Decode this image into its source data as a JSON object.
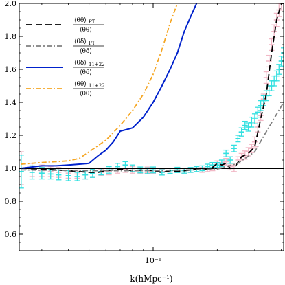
{
  "chart_data": {
    "type": "line",
    "xlabel": "k(hMpc⁻¹)",
    "ylabel": "",
    "xscale": "log",
    "xlim": [
      0.0235,
      0.41
    ],
    "ylim": [
      0.5,
      2.0
    ],
    "x_ticks": [
      {
        "value": 0.1,
        "label": "10⁻¹"
      }
    ],
    "y_ticks": [
      "0.6",
      "0.8",
      "1.0",
      "1.2",
      "1.4",
      "1.6",
      "1.8",
      "2.0"
    ],
    "reference_line": 1.0,
    "grid": false,
    "legend_position": "top-left",
    "series": [
      {
        "name": "⟨θθ⟩PT / ⟨θθ⟩",
        "legend": {
          "numerator": "⟨θθ⟩",
          "numerator_sub": "PT",
          "denominator": "⟨θθ⟩"
        },
        "color": "#000000",
        "dash": "dashed",
        "x": [
          0.024,
          0.03,
          0.035,
          0.04,
          0.045,
          0.05,
          0.055,
          0.06,
          0.065,
          0.07,
          0.075,
          0.08,
          0.09,
          0.1,
          0.11,
          0.12,
          0.13,
          0.14,
          0.15,
          0.16,
          0.17,
          0.18,
          0.19,
          0.2,
          0.21,
          0.22,
          0.23,
          0.24,
          0.26,
          0.28,
          0.3,
          0.32,
          0.34,
          0.36,
          0.38,
          0.4,
          0.41
        ],
        "y": [
          1.0,
          0.995,
          0.99,
          0.985,
          0.98,
          0.975,
          0.975,
          0.985,
          0.99,
          0.995,
          0.99,
          0.985,
          0.99,
          0.985,
          0.975,
          0.985,
          0.98,
          0.985,
          0.99,
          0.995,
          0.99,
          0.995,
          1.005,
          1.03,
          1.02,
          1.03,
          1.0,
          1.0,
          1.07,
          1.09,
          1.13,
          1.3,
          1.45,
          1.7,
          1.9,
          2.0,
          2.0
        ]
      },
      {
        "name": "⟨θδ⟩PT / ⟨θδ⟩",
        "legend": {
          "numerator": "⟨θδ⟩",
          "numerator_sub": "PT",
          "denominator": "⟨θδ⟩"
        },
        "color": "#808080",
        "dash": "dashdot",
        "x": [
          0.024,
          0.05,
          0.1,
          0.15,
          0.2,
          0.25,
          0.3,
          0.35,
          0.41
        ],
        "y": [
          0.99,
          0.985,
          0.985,
          0.99,
          0.995,
          1.03,
          1.1,
          1.25,
          1.4
        ]
      },
      {
        "name": "⟨θδ⟩11+22 / ⟨θδ⟩",
        "legend": {
          "numerator": "⟨θδ⟩",
          "numerator_sub": "11+22",
          "denominator": "⟨θδ⟩"
        },
        "color": "#0022cc",
        "dash": "solid",
        "x": [
          0.024,
          0.03,
          0.035,
          0.04,
          0.045,
          0.05,
          0.055,
          0.06,
          0.065,
          0.07,
          0.075,
          0.08,
          0.09,
          0.1,
          0.11,
          0.12,
          0.13,
          0.14,
          0.15,
          0.16
        ],
        "y": [
          1.0,
          1.015,
          1.015,
          1.02,
          1.025,
          1.03,
          1.075,
          1.11,
          1.16,
          1.225,
          1.235,
          1.245,
          1.31,
          1.4,
          1.5,
          1.6,
          1.7,
          1.83,
          1.92,
          2.0
        ]
      },
      {
        "name": "⟨θθ⟩11+22 / ⟨θθ⟩",
        "legend": {
          "numerator": "⟨θθ⟩",
          "numerator_sub": "11+22",
          "denominator": "⟨θθ⟩"
        },
        "color": "#f5a623",
        "dash": "dashdot",
        "x": [
          0.024,
          0.03,
          0.035,
          0.04,
          0.045,
          0.05,
          0.06,
          0.07,
          0.08,
          0.09,
          0.1,
          0.11,
          0.12,
          0.13
        ],
        "y": [
          1.025,
          1.035,
          1.04,
          1.045,
          1.06,
          1.1,
          1.17,
          1.26,
          1.35,
          1.45,
          1.57,
          1.72,
          1.88,
          2.0
        ]
      }
    ],
    "error_series": [
      {
        "color": "#f2b8c6",
        "x": [
          0.024,
          0.027,
          0.03,
          0.033,
          0.036,
          0.04,
          0.044,
          0.048,
          0.052,
          0.057,
          0.062,
          0.068,
          0.074,
          0.08,
          0.087,
          0.094,
          0.1,
          0.11,
          0.12,
          0.13,
          0.14,
          0.15,
          0.16,
          0.17,
          0.18,
          0.19,
          0.2,
          0.21,
          0.22,
          0.23,
          0.24,
          0.25,
          0.26,
          0.27,
          0.28,
          0.29,
          0.3,
          0.31,
          0.32,
          0.33,
          0.34,
          0.35,
          0.36,
          0.37,
          0.38,
          0.39,
          0.4,
          0.41
        ],
        "y": [
          1.0,
          0.99,
          0.985,
          0.98,
          0.975,
          0.97,
          0.965,
          0.96,
          0.97,
          0.975,
          0.98,
          0.99,
          0.995,
          0.99,
          0.985,
          0.99,
          0.985,
          0.98,
          0.985,
          0.99,
          0.985,
          0.99,
          0.995,
          0.99,
          0.995,
          1.0,
          1.03,
          1.02,
          1.04,
          1.01,
          1.0,
          1.05,
          1.07,
          1.08,
          1.1,
          1.12,
          1.16,
          1.25,
          1.32,
          1.42,
          1.55,
          1.65,
          1.75,
          1.83,
          1.9,
          1.96,
          2.0,
          2.0
        ],
        "err": [
          0.1,
          0.04,
          0.035,
          0.03,
          0.03,
          0.03,
          0.025,
          0.025,
          0.025,
          0.02,
          0.02,
          0.02,
          0.02,
          0.02,
          0.018,
          0.018,
          0.018,
          0.016,
          0.016,
          0.016,
          0.015,
          0.015,
          0.015,
          0.015,
          0.015,
          0.015,
          0.015,
          0.015,
          0.02,
          0.02,
          0.02,
          0.02,
          0.02,
          0.025,
          0.025,
          0.025,
          0.03,
          0.03,
          0.03,
          0.03,
          0.035,
          0.035,
          0.035,
          0.04,
          0.04,
          0.04,
          0.04,
          0.04
        ]
      },
      {
        "color": "#33e0e0",
        "x": [
          0.024,
          0.027,
          0.03,
          0.033,
          0.036,
          0.04,
          0.044,
          0.048,
          0.052,
          0.057,
          0.062,
          0.068,
          0.074,
          0.08,
          0.087,
          0.094,
          0.1,
          0.11,
          0.12,
          0.13,
          0.14,
          0.15,
          0.16,
          0.17,
          0.18,
          0.19,
          0.2,
          0.21,
          0.22,
          0.23,
          0.24,
          0.25,
          0.26,
          0.27,
          0.28,
          0.29,
          0.3,
          0.31,
          0.32,
          0.33,
          0.34,
          0.35,
          0.36,
          0.37,
          0.38,
          0.39,
          0.4,
          0.41
        ],
        "y": [
          0.98,
          0.975,
          0.97,
          0.965,
          0.96,
          0.955,
          0.95,
          0.96,
          0.97,
          0.98,
          0.99,
          1.01,
          1.02,
          1.0,
          0.99,
          0.985,
          0.99,
          0.975,
          0.985,
          0.99,
          0.985,
          0.99,
          0.995,
          1.0,
          1.01,
          1.02,
          1.02,
          1.03,
          1.09,
          1.05,
          1.12,
          1.18,
          1.22,
          1.26,
          1.25,
          1.28,
          1.3,
          1.34,
          1.38,
          1.41,
          1.44,
          1.47,
          1.5,
          1.53,
          1.56,
          1.6,
          1.65,
          1.7
        ],
        "err": [
          0.1,
          0.04,
          0.035,
          0.03,
          0.03,
          0.03,
          0.025,
          0.025,
          0.025,
          0.02,
          0.02,
          0.02,
          0.02,
          0.02,
          0.018,
          0.018,
          0.018,
          0.016,
          0.016,
          0.016,
          0.015,
          0.015,
          0.015,
          0.015,
          0.015,
          0.015,
          0.015,
          0.02,
          0.02,
          0.02,
          0.02,
          0.02,
          0.025,
          0.025,
          0.025,
          0.03,
          0.03,
          0.03,
          0.03,
          0.03,
          0.03,
          0.03,
          0.03,
          0.03,
          0.03,
          0.03,
          0.03,
          0.03
        ]
      }
    ]
  }
}
